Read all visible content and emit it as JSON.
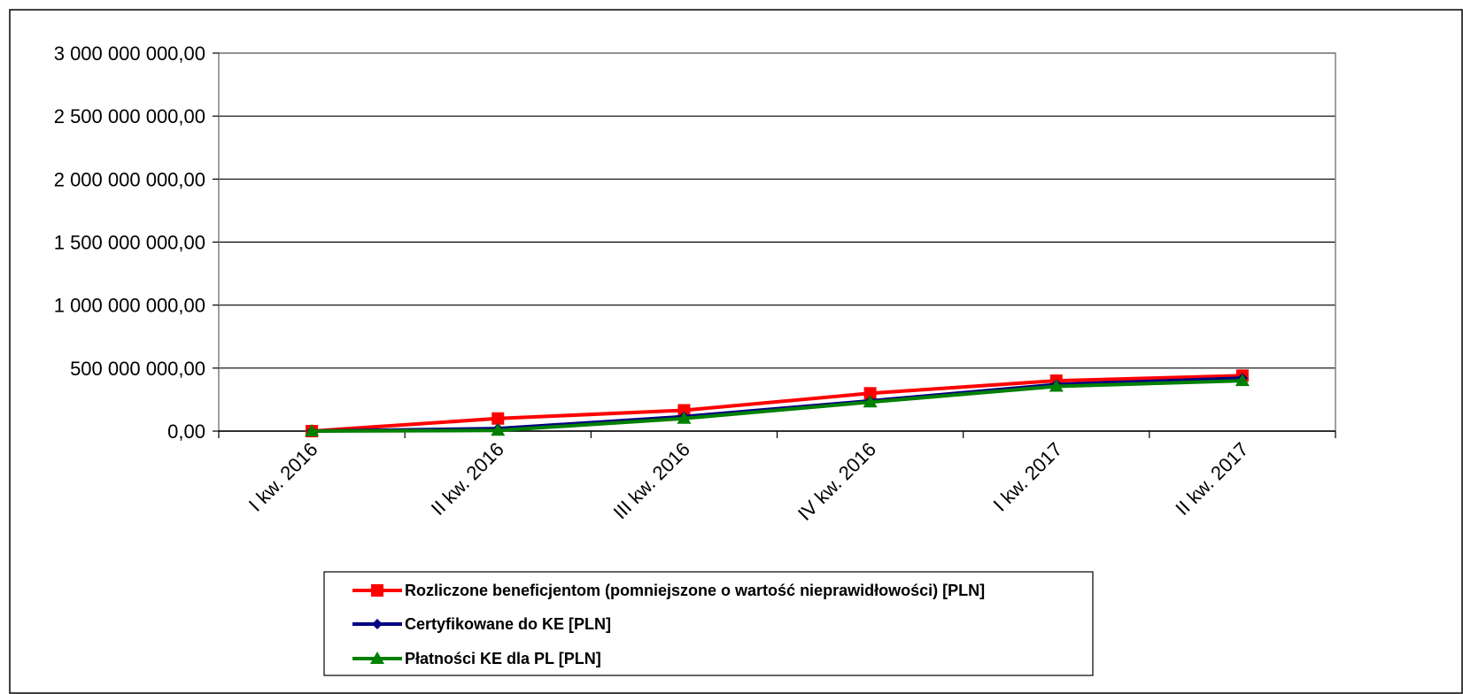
{
  "chart_data": {
    "type": "line",
    "categories": [
      "I kw. 2016",
      "II kw. 2016",
      "III kw. 2016",
      "IV kw. 2016",
      "I kw. 2017",
      "II kw. 2017"
    ],
    "ylim": [
      0,
      3000000000
    ],
    "yticks": [
      0,
      500000000,
      1000000000,
      1500000000,
      2000000000,
      2500000000,
      3000000000
    ],
    "ytick_labels": [
      "0,00",
      "500 000 000,00",
      "1 000 000 000,00",
      "1 500 000 000,00",
      "2 000 000 000,00",
      "2 500 000 000,00",
      "3 000 000 000,00"
    ],
    "grid": true,
    "legend_position": "bottom",
    "series": [
      {
        "name": "Rozliczone beneficjentom (pomniejszone o wartość nieprawidłowości) [PLN]",
        "color": "#ff0000",
        "marker": "square",
        "values": [
          0,
          100000000,
          165000000,
          300000000,
          400000000,
          440000000
        ]
      },
      {
        "name": "Certyfikowane do KE [PLN]",
        "color": "#000080",
        "marker": "diamond",
        "values": [
          0,
          20000000,
          115000000,
          240000000,
          370000000,
          420000000
        ]
      },
      {
        "name": "Płatności KE dla PL [PLN]",
        "color": "#008000",
        "marker": "triangle",
        "values": [
          0,
          5000000,
          100000000,
          230000000,
          355000000,
          400000000
        ]
      }
    ]
  }
}
